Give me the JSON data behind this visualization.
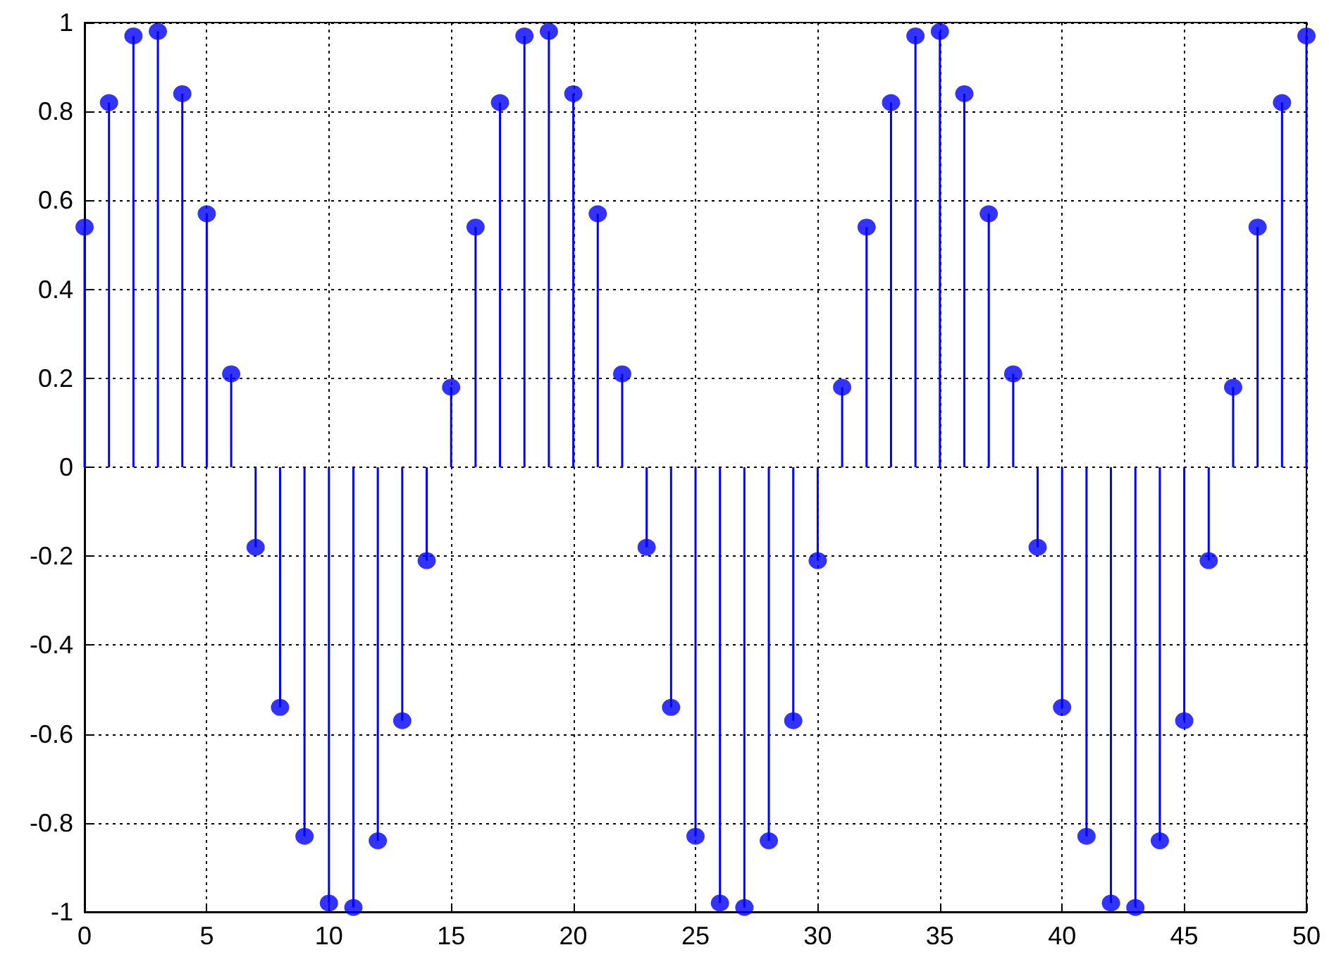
{
  "chart_data": {
    "type": "lollipop",
    "x": [
      0,
      1,
      2,
      3,
      4,
      5,
      6,
      7,
      8,
      9,
      10,
      11,
      12,
      13,
      14,
      15,
      16,
      17,
      18,
      19,
      20,
      21,
      22,
      23,
      24,
      25,
      26,
      27,
      28,
      29,
      30,
      31,
      32,
      33,
      34,
      35,
      36,
      37,
      38,
      39,
      40,
      41,
      42,
      43,
      44,
      45,
      46,
      47,
      48,
      49,
      50
    ],
    "series": [
      {
        "color": "#0000ff",
        "values": [
          0.54,
          0.82,
          0.97,
          0.98,
          0.84,
          0.57,
          0.21,
          -0.18,
          -0.54,
          -0.83,
          -0.98,
          -0.99,
          -0.84,
          -0.57,
          -0.21,
          0.18,
          0.54,
          0.82,
          0.97,
          0.98,
          0.84,
          0.57,
          0.21,
          -0.18,
          -0.54,
          -0.83,
          -0.98,
          -0.99,
          -0.84,
          -0.57,
          -0.21,
          0.18,
          0.54,
          0.82,
          0.97,
          0.98,
          0.84,
          0.57,
          0.21,
          -0.18,
          -0.54,
          -0.83,
          -0.98,
          -0.99,
          -0.84,
          -0.57,
          -0.21,
          0.18,
          0.54,
          0.82,
          0.97
        ]
      }
    ],
    "xlim": [
      0,
      50
    ],
    "xticks": [
      0,
      5,
      10,
      15,
      20,
      25,
      30,
      35,
      40,
      45,
      50
    ],
    "ylim": [
      -1,
      1
    ],
    "yticks": [
      -1,
      -0.8,
      -0.6,
      -0.4,
      -0.2,
      0,
      0.2,
      0.4,
      0.6,
      0.8,
      1
    ],
    "grid": true,
    "marker": "circle"
  }
}
